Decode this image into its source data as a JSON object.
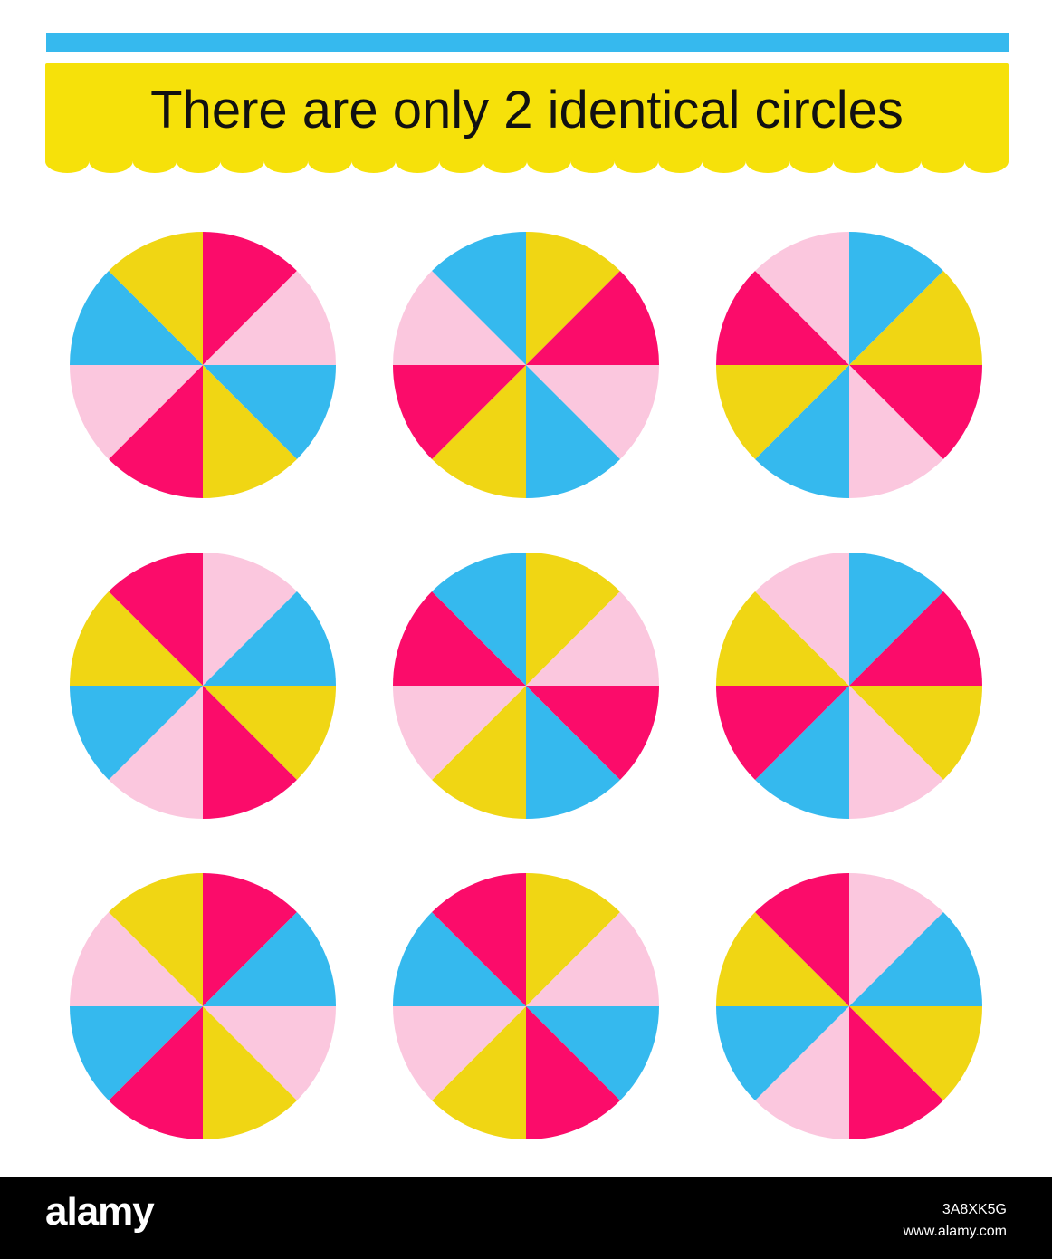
{
  "title": "There are only 2 identical circles",
  "colors": {
    "red": "#fb0c6a",
    "pink": "#fbc7de",
    "blue": "#35b9ee",
    "yellow": "#f0d614",
    "banner": "#f6e10a",
    "topbar": "#36b9ee"
  },
  "circles": [
    [
      "red",
      "pink",
      "blue",
      "yellow",
      "red",
      "pink",
      "blue",
      "yellow"
    ],
    [
      "yellow",
      "red",
      "pink",
      "blue",
      "yellow",
      "red",
      "pink",
      "blue"
    ],
    [
      "blue",
      "yellow",
      "red",
      "pink",
      "blue",
      "yellow",
      "red",
      "pink"
    ],
    [
      "pink",
      "blue",
      "yellow",
      "red",
      "pink",
      "blue",
      "yellow",
      "red"
    ],
    [
      "yellow",
      "pink",
      "red",
      "blue",
      "yellow",
      "pink",
      "red",
      "blue"
    ],
    [
      "blue",
      "red",
      "yellow",
      "pink",
      "blue",
      "red",
      "yellow",
      "pink"
    ],
    [
      "red",
      "blue",
      "pink",
      "yellow",
      "red",
      "blue",
      "pink",
      "yellow"
    ],
    [
      "yellow",
      "pink",
      "blue",
      "red",
      "yellow",
      "pink",
      "blue",
      "red"
    ],
    [
      "pink",
      "blue",
      "yellow",
      "red",
      "pink",
      "blue",
      "yellow",
      "red"
    ]
  ],
  "footer": {
    "logo": "alamy",
    "image_id": "3A8XK5G",
    "url": "www.alamy.com"
  }
}
